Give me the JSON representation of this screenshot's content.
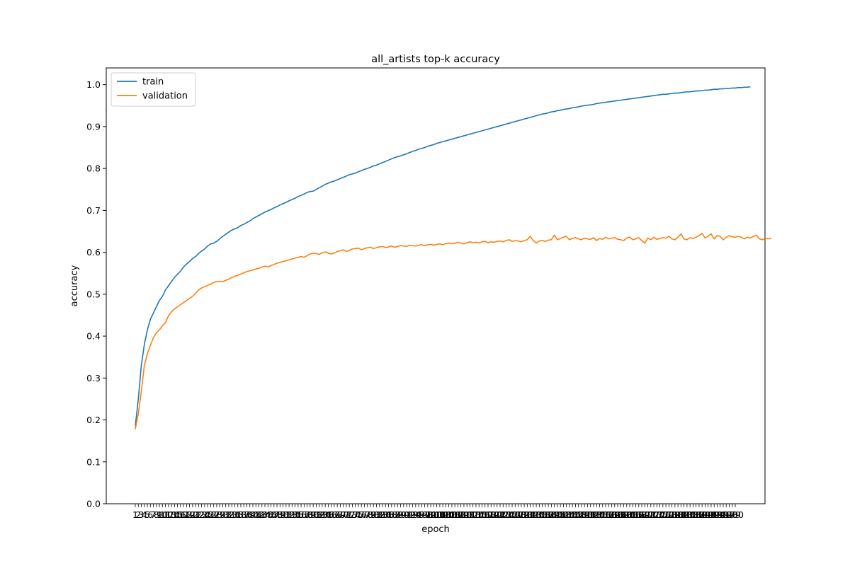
{
  "chart_data": {
    "type": "line",
    "title": "all_artists top-k accuracy",
    "xlabel": "epoch",
    "ylabel": "accuracy",
    "x_range": [
      1,
      200
    ],
    "ylim": [
      0.0,
      1.04
    ],
    "yticks": [
      "0.0",
      "0.1",
      "0.2",
      "0.3",
      "0.4",
      "0.5",
      "0.6",
      "0.7",
      "0.8",
      "0.9",
      "1.0"
    ],
    "grid": false,
    "legend_position": "upper-left",
    "series": [
      {
        "name": "train",
        "color": "#1f77b4",
        "values": [
          0.185,
          0.25,
          0.33,
          0.38,
          0.415,
          0.44,
          0.455,
          0.47,
          0.485,
          0.495,
          0.51,
          0.52,
          0.53,
          0.54,
          0.548,
          0.555,
          0.565,
          0.572,
          0.578,
          0.585,
          0.59,
          0.597,
          0.603,
          0.608,
          0.615,
          0.62,
          0.622,
          0.626,
          0.632,
          0.638,
          0.643,
          0.648,
          0.653,
          0.656,
          0.659,
          0.664,
          0.667,
          0.671,
          0.675,
          0.68,
          0.684,
          0.688,
          0.692,
          0.696,
          0.699,
          0.702,
          0.706,
          0.709,
          0.713,
          0.716,
          0.719,
          0.723,
          0.726,
          0.729,
          0.733,
          0.736,
          0.739,
          0.743,
          0.745,
          0.746,
          0.75,
          0.754,
          0.758,
          0.762,
          0.765,
          0.768,
          0.77,
          0.773,
          0.776,
          0.779,
          0.782,
          0.785,
          0.787,
          0.789,
          0.792,
          0.795,
          0.798,
          0.8,
          0.803,
          0.806,
          0.808,
          0.811,
          0.814,
          0.817,
          0.82,
          0.823,
          0.826,
          0.828,
          0.83,
          0.833,
          0.835,
          0.838,
          0.841,
          0.843,
          0.846,
          0.848,
          0.85,
          0.853,
          0.855,
          0.857,
          0.86,
          0.862,
          0.864,
          0.866,
          0.868,
          0.87,
          0.872,
          0.874,
          0.876,
          0.878,
          0.88,
          0.882,
          0.884,
          0.886,
          0.888,
          0.89,
          0.892,
          0.894,
          0.896,
          0.898,
          0.9,
          0.902,
          0.904,
          0.906,
          0.908,
          0.91,
          0.912,
          0.914,
          0.916,
          0.918,
          0.92,
          0.922,
          0.924,
          0.926,
          0.928,
          0.93,
          0.931,
          0.933,
          0.935,
          0.936,
          0.938,
          0.939,
          0.941,
          0.942,
          0.943,
          0.945,
          0.946,
          0.947,
          0.949,
          0.95,
          0.951,
          0.952,
          0.953,
          0.955,
          0.956,
          0.957,
          0.958,
          0.959,
          0.96,
          0.961,
          0.962,
          0.963,
          0.964,
          0.965,
          0.966,
          0.967,
          0.968,
          0.969,
          0.97,
          0.971,
          0.972,
          0.973,
          0.974,
          0.975,
          0.976,
          0.977,
          0.977,
          0.978,
          0.979,
          0.98,
          0.98,
          0.981,
          0.982,
          0.983,
          0.983,
          0.984,
          0.985,
          0.985,
          0.986,
          0.987,
          0.987,
          0.988,
          0.989,
          0.989,
          0.99,
          0.99,
          0.991,
          0.991,
          0.992,
          0.992,
          0.993,
          0.993,
          0.994,
          0.994,
          0.995
        ]
      },
      {
        "name": "validation",
        "color": "#ff7f0e",
        "values": [
          0.178,
          0.215,
          0.268,
          0.33,
          0.358,
          0.378,
          0.396,
          0.408,
          0.415,
          0.425,
          0.432,
          0.448,
          0.458,
          0.465,
          0.47,
          0.475,
          0.48,
          0.485,
          0.49,
          0.495,
          0.502,
          0.51,
          0.515,
          0.518,
          0.521,
          0.524,
          0.528,
          0.53,
          0.531,
          0.53,
          0.533,
          0.536,
          0.54,
          0.543,
          0.545,
          0.548,
          0.551,
          0.554,
          0.556,
          0.558,
          0.56,
          0.562,
          0.565,
          0.567,
          0.565,
          0.568,
          0.571,
          0.574,
          0.576,
          0.578,
          0.58,
          0.582,
          0.584,
          0.586,
          0.588,
          0.59,
          0.588,
          0.592,
          0.596,
          0.598,
          0.597,
          0.595,
          0.599,
          0.601,
          0.598,
          0.596,
          0.598,
          0.602,
          0.604,
          0.606,
          0.602,
          0.605,
          0.608,
          0.609,
          0.61,
          0.606,
          0.609,
          0.611,
          0.612,
          0.609,
          0.611,
          0.613,
          0.614,
          0.611,
          0.613,
          0.615,
          0.612,
          0.614,
          0.616,
          0.615,
          0.614,
          0.617,
          0.616,
          0.615,
          0.617,
          0.618,
          0.616,
          0.618,
          0.619,
          0.617,
          0.619,
          0.62,
          0.618,
          0.621,
          0.622,
          0.62,
          0.622,
          0.624,
          0.622,
          0.62,
          0.623,
          0.625,
          0.623,
          0.624,
          0.622,
          0.625,
          0.626,
          0.623,
          0.625,
          0.624,
          0.626,
          0.627,
          0.625,
          0.628,
          0.63,
          0.626,
          0.628,
          0.627,
          0.625,
          0.628,
          0.63,
          0.638,
          0.628,
          0.622,
          0.627,
          0.628,
          0.626,
          0.629,
          0.63,
          0.641,
          0.63,
          0.633,
          0.636,
          0.638,
          0.63,
          0.633,
          0.635,
          0.632,
          0.63,
          0.634,
          0.632,
          0.631,
          0.635,
          0.628,
          0.633,
          0.631,
          0.636,
          0.632,
          0.634,
          0.635,
          0.631,
          0.63,
          0.628,
          0.634,
          0.636,
          0.63,
          0.632,
          0.635,
          0.628,
          0.622,
          0.634,
          0.63,
          0.636,
          0.631,
          0.633,
          0.635,
          0.634,
          0.638,
          0.632,
          0.63,
          0.636,
          0.644,
          0.632,
          0.63,
          0.635,
          0.633,
          0.636,
          0.64,
          0.645,
          0.634,
          0.638,
          0.644,
          0.632,
          0.64,
          0.638,
          0.63,
          0.636,
          0.64,
          0.637,
          0.636,
          0.638,
          0.636,
          0.632,
          0.636,
          0.634,
          0.638,
          0.641,
          0.632,
          0.63,
          0.634,
          0.632,
          0.634
        ]
      }
    ]
  }
}
